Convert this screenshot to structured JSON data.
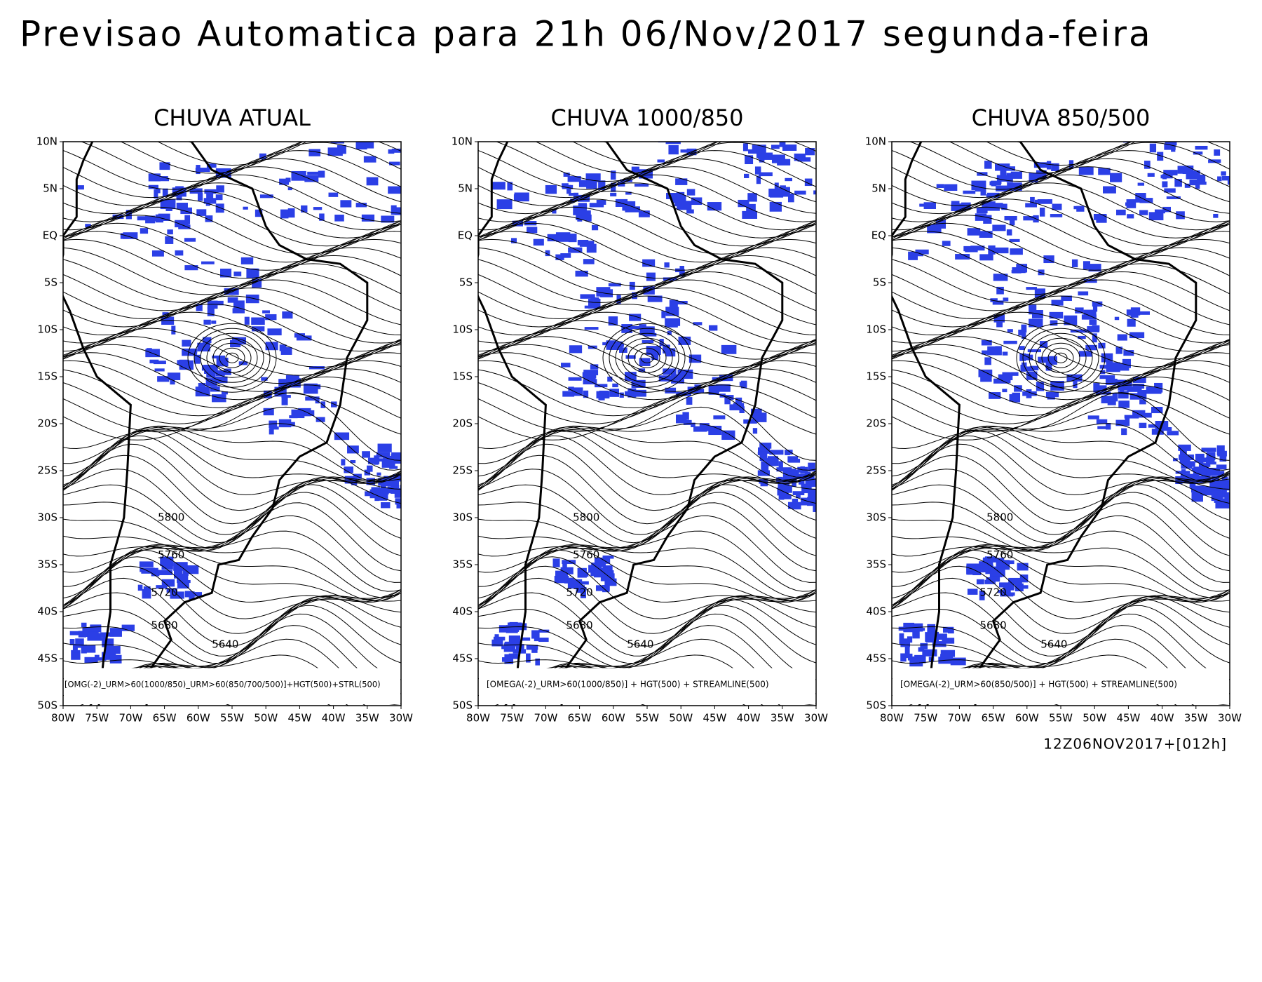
{
  "title": "Previsao Automatica para 21h 06/Nov/2017 segunda-feira",
  "lat_labels": [
    "10N",
    "5N",
    "EQ",
    "5S",
    "10S",
    "15S",
    "20S",
    "25S",
    "30S",
    "35S",
    "40S",
    "45S",
    "50S"
  ],
  "lon_labels": [
    "80W",
    "75W",
    "70W",
    "65W",
    "60W",
    "55W",
    "50W",
    "45W",
    "40W",
    "35W",
    "30W"
  ],
  "panels": [
    {
      "title": "CHUVA ATUAL",
      "caption": "[OMG(-2)_URM>60(1000/850)_URM>60(850/700/500)]+HGT(500)+STRL(500)"
    },
    {
      "title": "CHUVA 1000/850",
      "caption": "[OMEGA(-2)_URM>60(1000/850)] + HGT(500) + STREAMLINE(500)"
    },
    {
      "title": "CHUVA 850/500",
      "caption": "[OMEGA(-2)_URM>60(850/500)] + HGT(500) + STREAMLINE(500)"
    }
  ],
  "contour_labels": [
    "5800",
    "5760",
    "5720",
    "5680",
    "5640"
  ],
  "footer": "12Z06NOV2017+[012h]"
}
